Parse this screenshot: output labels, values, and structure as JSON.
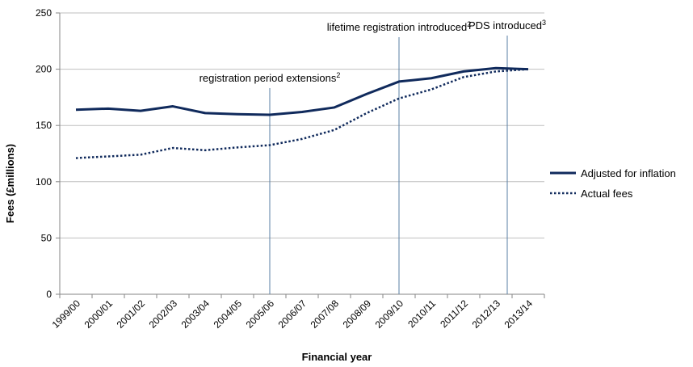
{
  "chart_data": {
    "type": "line",
    "title": "",
    "xlabel": "Financial year",
    "ylabel": "Fees (£millions)",
    "ylim": [
      0,
      250
    ],
    "yticks": [
      0,
      50,
      100,
      150,
      200,
      250
    ],
    "grid": "horizontal",
    "legend_position": "right",
    "categories": [
      "1999/00",
      "2000/01",
      "2001/02",
      "2002/03",
      "2003/04",
      "2004/05",
      "2005/06",
      "2006/07",
      "2007/08",
      "2008/09",
      "2009/10",
      "2010/11",
      "2011/12",
      "2012/13",
      "2013/14"
    ],
    "series": [
      {
        "name": "Adjusted for inflation",
        "style": "solid",
        "color": "#102a5c",
        "values": [
          164,
          165,
          163,
          167,
          161,
          160,
          159.5,
          162,
          166,
          178,
          189,
          192,
          198,
          201,
          200
        ]
      },
      {
        "name": "Actual fees",
        "style": "dotted",
        "color": "#102a5c",
        "values": [
          121,
          122.5,
          124,
          130,
          128,
          130.5,
          132.5,
          138,
          146,
          161,
          174,
          182,
          193,
          198,
          200
        ]
      }
    ],
    "annotations": [
      {
        "text": "registration period extensions",
        "sup": "2",
        "at": 6.5
      },
      {
        "text": "lifetime registration introduced",
        "sup": "2",
        "at": 10.5
      },
      {
        "text": "PDS introduced",
        "sup": "3",
        "at": 13.85
      }
    ],
    "colors": {
      "series": "#102a5c",
      "marker_line": "#5a7fa6",
      "grid": "#bfbfbf",
      "axis": "#868686"
    }
  }
}
